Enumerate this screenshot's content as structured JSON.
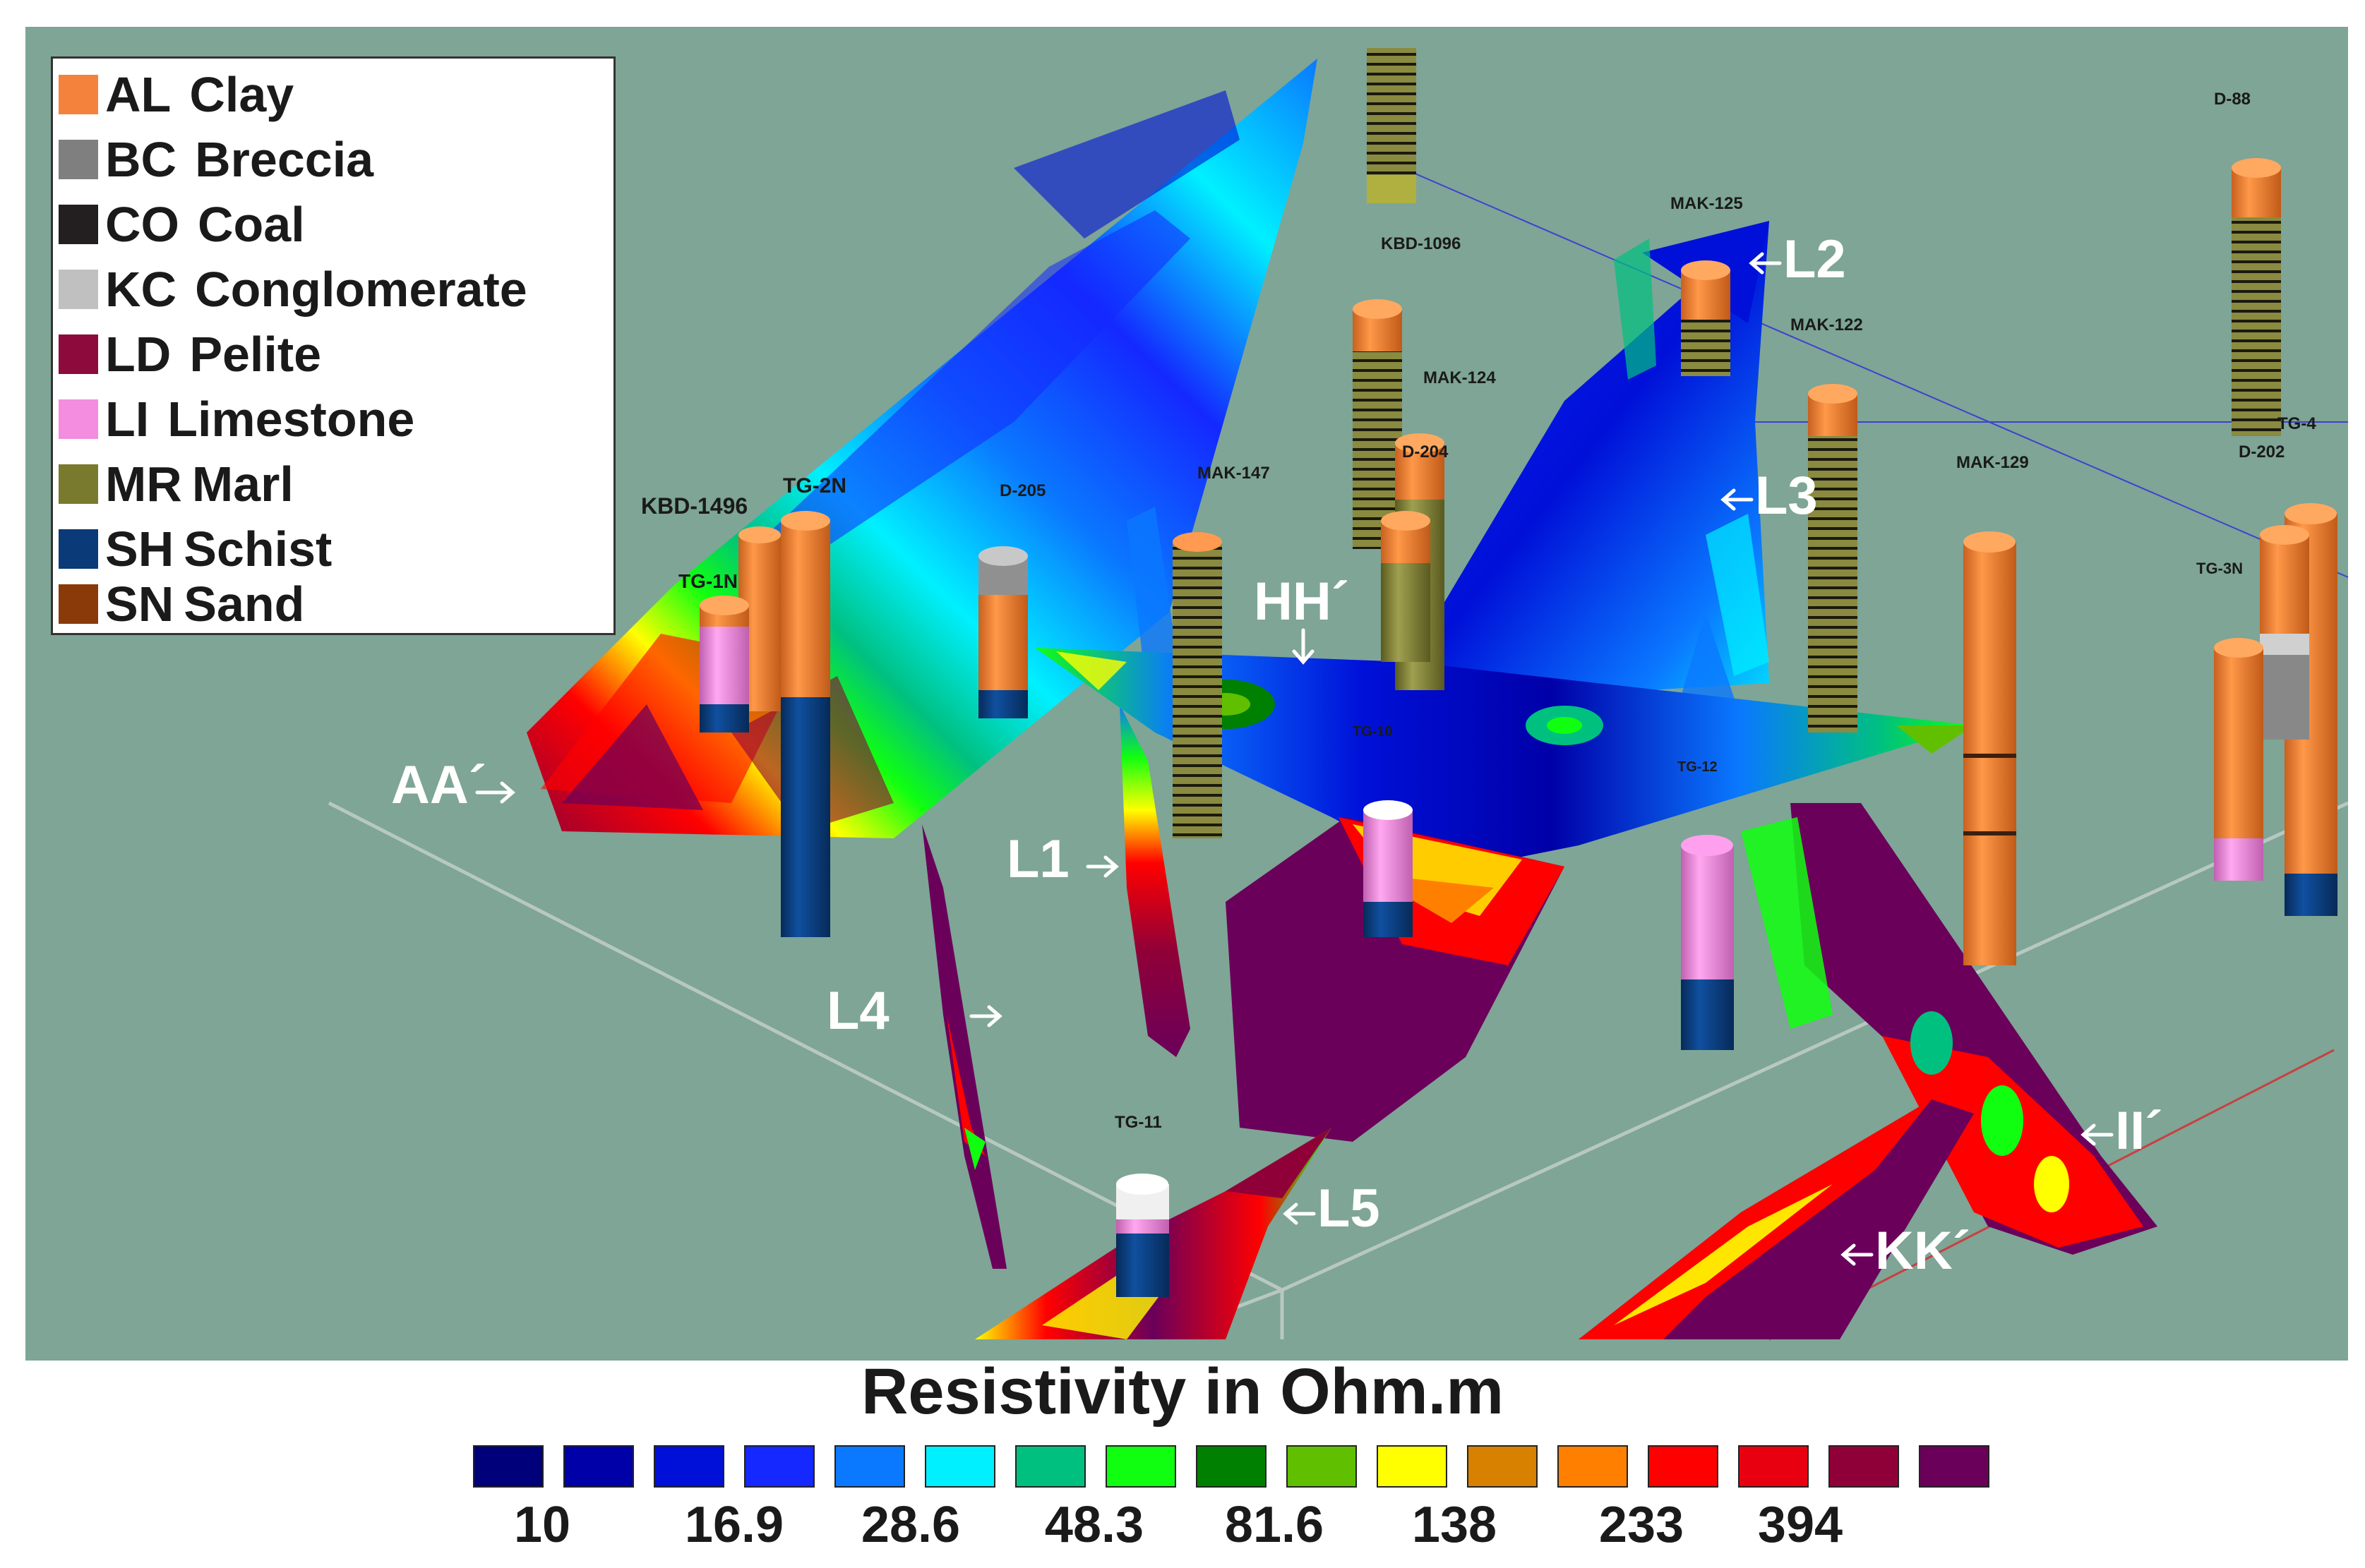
{
  "legend": {
    "items": [
      {
        "code": "AL",
        "name": "Clay",
        "color": "#f5823c"
      },
      {
        "code": "BC",
        "name": "Breccia",
        "color": "#7f7f7f"
      },
      {
        "code": "CO",
        "name": "Coal",
        "color": "#231f20"
      },
      {
        "code": "KC",
        "name": "Conglomerate",
        "color": "#c0c0c0"
      },
      {
        "code": "LD",
        "name": "Pelite",
        "color": "#8c0a3c"
      },
      {
        "code": "LI",
        "name": "Limestone",
        "color": "#f48ce0"
      },
      {
        "code": "MR",
        "name": "Marl",
        "color": "#7a7a2e"
      },
      {
        "code": "SH",
        "name": "Schist",
        "color": "#0a3a78"
      },
      {
        "code": "SN",
        "name": "Sand",
        "color": "#8a3a08"
      }
    ]
  },
  "scene": {
    "background": "#7ea596",
    "wells": [
      "KBD-1496",
      "TG-2N",
      "TG-1N",
      "D-205",
      "MAK-147",
      "KBD-1096",
      "MAK-124",
      "D-204",
      "MAK-125",
      "MAK-122",
      "MAK-129",
      "D-88",
      "TG-4",
      "D-202",
      "TG-3N",
      "TG-11",
      "TG-10",
      "TG-12"
    ],
    "profiles": [
      "AA´",
      "L1",
      "L2",
      "L3",
      "L4",
      "L5",
      "HH´",
      "II´",
      "KK´"
    ]
  },
  "scale": {
    "title": "Resistivity in Ohm.m",
    "colors": [
      "#00007a",
      "#0000a8",
      "#0010d8",
      "#1428ff",
      "#0a78ff",
      "#00f0ff",
      "#00c080",
      "#10ff10",
      "#008000",
      "#60c000",
      "#ffff00",
      "#d88000",
      "#ff8000",
      "#ff0000",
      "#e80010",
      "#900038",
      "#6a005a"
    ],
    "labels": [
      "10",
      "16.9",
      "28.6",
      "48.3",
      "81.6",
      "138",
      "233",
      "394"
    ]
  }
}
